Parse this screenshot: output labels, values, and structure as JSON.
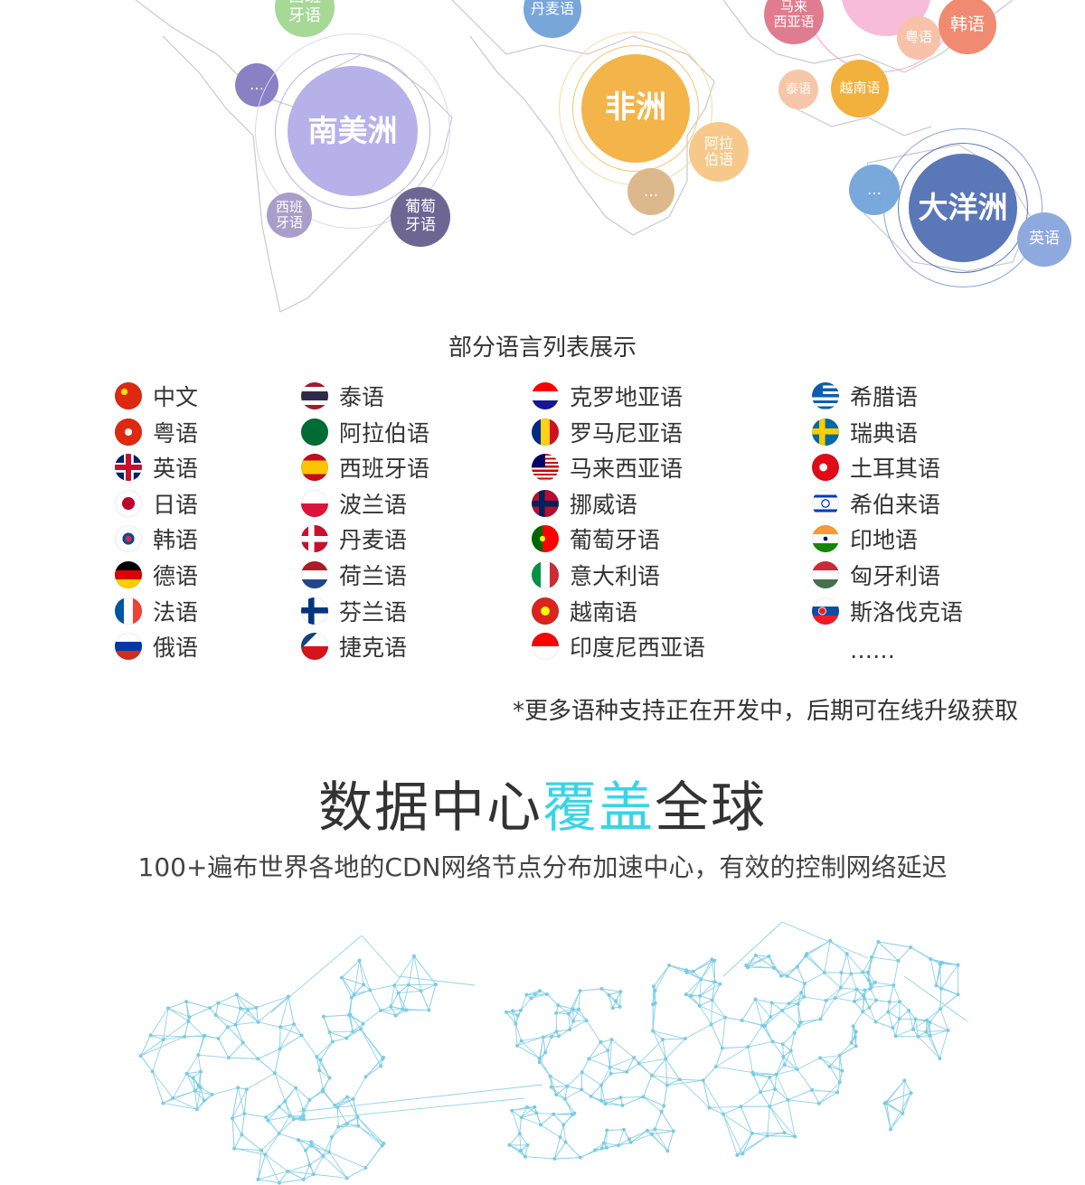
{
  "map": {
    "bubbles": [
      "西班\n牙语",
      "丹麦语",
      "马来\n西亚语",
      "粤语",
      "韩语",
      "…",
      "南美洲",
      "西班\n牙语",
      "葡萄\n牙语",
      "非洲",
      "阿拉\n伯语",
      "…",
      "泰语",
      "越南语",
      "…",
      "大洋洲",
      "英语"
    ]
  },
  "languages": {
    "title": "部分语言列表展示",
    "items": [
      "中文",
      "粤语",
      "英语",
      "日语",
      "韩语",
      "德语",
      "法语",
      "俄语",
      "泰语",
      "阿拉伯语",
      "西班牙语",
      "波兰语",
      "丹麦语",
      "荷兰语",
      "芬兰语",
      "捷克语",
      "克罗地亚语",
      "罗马尼亚语",
      "马来西亚语",
      "挪威语",
      "葡萄牙语",
      "意大利语",
      "越南语",
      "印度尼西亚语",
      "希腊语",
      "瑞典语",
      "土耳其语",
      "希伯来语",
      "印地语",
      "匈牙利语",
      "斯洛伐克语"
    ],
    "more": "……",
    "note": "*更多语种支持正在开发中，后期可在线升级获取"
  },
  "datacenter": {
    "title_parts": [
      "数据中心",
      "覆盖",
      "全球"
    ],
    "subtitle": "100+遍布世界各地的CDN网络节点分布加速中心，有效的控制网络延迟"
  }
}
